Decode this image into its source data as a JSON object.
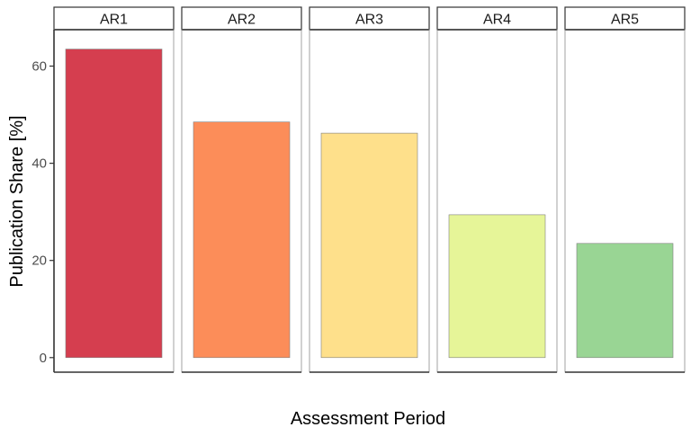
{
  "chart_data": {
    "type": "bar",
    "categories": [
      "AR1",
      "AR2",
      "AR3",
      "AR4",
      "AR5"
    ],
    "values": [
      63.5,
      48.5,
      46.2,
      29.4,
      23.5
    ],
    "colors": [
      "#d53e4f",
      "#fc8d59",
      "#fee08b",
      "#e6f598",
      "#99d594"
    ],
    "xlabel": "Assessment Period",
    "ylabel": "Publication Share [%]",
    "ylim": [
      -3,
      67.5
    ],
    "yticks": [
      0,
      20,
      40,
      60
    ],
    "ytick_labels": [
      "0",
      "20",
      "40",
      "60"
    ],
    "facet_labels": [
      "AR1",
      "AR2",
      "AR3",
      "AR4",
      "AR5"
    ],
    "grid": false,
    "legend": "none"
  }
}
